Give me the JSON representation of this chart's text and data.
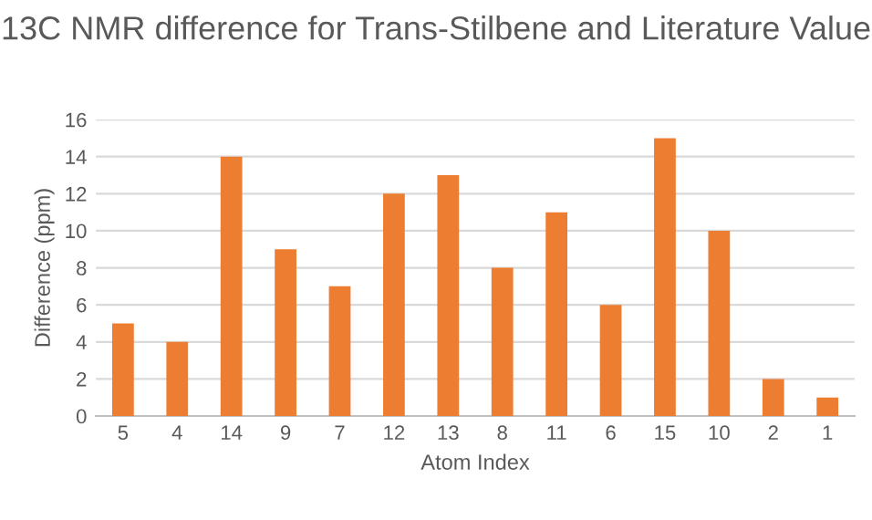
{
  "chart_data": {
    "type": "bar",
    "title": "13C NMR difference for Trans-Stilbene and Literature Value",
    "xlabel": "Atom Index",
    "ylabel": "Difference (ppm)",
    "categories": [
      "5",
      "4",
      "14",
      "9",
      "7",
      "12",
      "13",
      "8",
      "11",
      "6",
      "15",
      "10",
      "2",
      "1"
    ],
    "values": [
      5,
      4,
      14,
      9,
      7,
      12,
      13,
      8,
      11,
      6,
      15,
      10,
      2,
      1
    ],
    "color": "#ed7d31",
    "ylim": [
      0,
      16
    ],
    "yticks": [
      0,
      2,
      4,
      6,
      8,
      10,
      12,
      14,
      16
    ],
    "grid": "y"
  }
}
